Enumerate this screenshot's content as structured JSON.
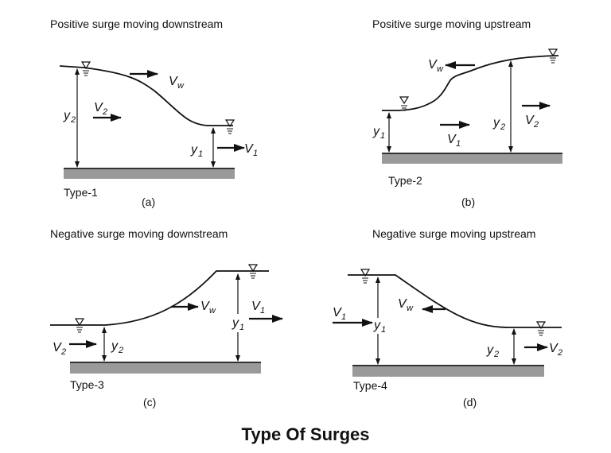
{
  "main_title": "Type Of Surges",
  "panels": [
    {
      "title": "Positive surge moving downstream",
      "type": "Type-1",
      "tag": "(a)"
    },
    {
      "title": "Positive surge moving upstream",
      "type": "Type-2",
      "tag": "(b)"
    },
    {
      "title": "Negative surge moving downstream",
      "type": "Type-3",
      "tag": "(c)"
    },
    {
      "title": "Negative surge moving upstream",
      "type": "Type-4",
      "tag": "(d)"
    }
  ],
  "symbols": {
    "v": "V",
    "y": "y",
    "w": "w",
    "one": "1",
    "two": "2"
  }
}
